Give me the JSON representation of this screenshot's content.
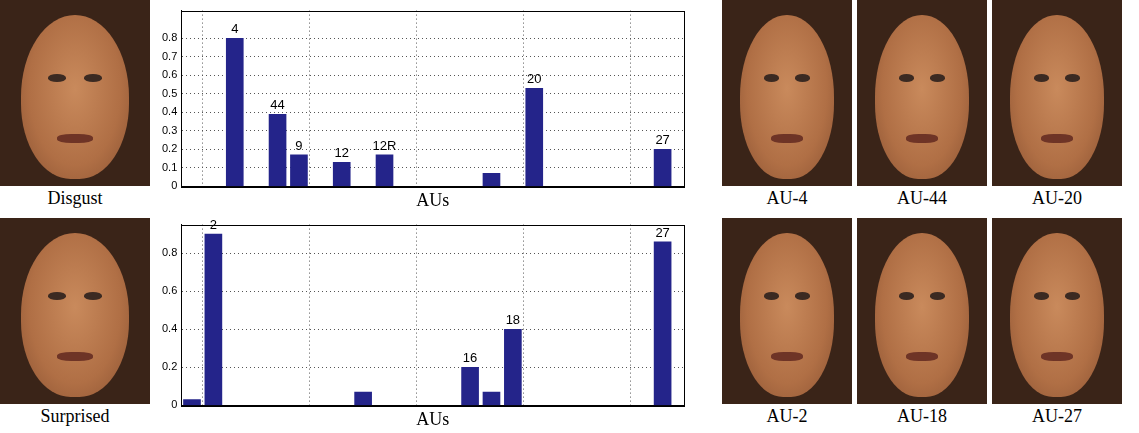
{
  "chart_data": [
    {
      "type": "bar",
      "x_label": "AUs",
      "color": "#24248a",
      "grid": true,
      "tick_labels": "y",
      "x": [
        4,
        6,
        7,
        9,
        11,
        16,
        18,
        24
      ],
      "values": [
        0.8,
        0.39,
        0.17,
        0.13,
        0.17,
        0.07,
        0.53,
        0.2
      ],
      "bar_labels": [
        "4",
        "44",
        "9",
        "12",
        "12R",
        null,
        "20",
        "27"
      ],
      "xlim": [
        1.5,
        25
      ],
      "xticks": [
        5,
        10,
        15,
        20,
        25
      ],
      "ylim": [
        0,
        0.95
      ],
      "yticks": [
        0,
        0.1,
        0.2,
        0.3,
        0.4,
        0.5,
        0.6,
        0.7,
        0.8
      ]
    },
    {
      "type": "bar",
      "x_label": "AUs",
      "color": "#24248a",
      "grid": true,
      "tick_labels": "y",
      "x": [
        2,
        3,
        10,
        15,
        16,
        17,
        24
      ],
      "values": [
        0.03,
        0.9,
        0.07,
        0.2,
        0.07,
        0.4,
        0.86
      ],
      "bar_labels": [
        null,
        "2",
        null,
        "16",
        null,
        "18",
        "27"
      ],
      "xlim": [
        1.5,
        25
      ],
      "xticks": [
        5,
        10,
        15,
        20,
        25
      ],
      "ylim": [
        0,
        0.95
      ],
      "yticks": [
        0,
        0.2,
        0.4,
        0.6,
        0.8
      ]
    }
  ],
  "images": {
    "left": [
      "Disgust",
      "Surprised"
    ],
    "right": [
      [
        "AU-4",
        "AU-44",
        "AU-20"
      ],
      [
        "AU-2",
        "AU-18",
        "AU-27"
      ]
    ]
  }
}
